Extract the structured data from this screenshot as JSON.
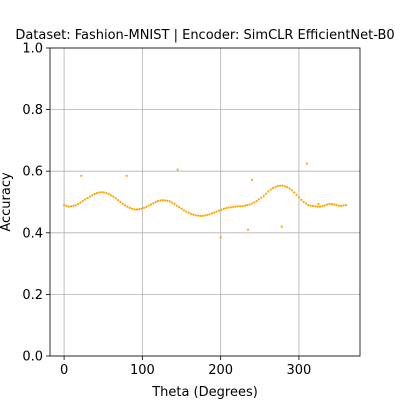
{
  "chart_data": {
    "type": "scatter",
    "title": "Dataset: Fashion-MNIST | Encoder: SimCLR EfficientNet-B0",
    "xlabel": "Theta (Degrees)",
    "ylabel": "Accuracy",
    "xlim": [
      -18,
      378
    ],
    "ylim": [
      0.0,
      1.0
    ],
    "xticks": [
      0,
      100,
      200,
      300
    ],
    "xtick_labels": [
      "0",
      "100",
      "200",
      "300"
    ],
    "yticks": [
      0.0,
      0.2,
      0.4,
      0.6,
      0.8,
      1.0
    ],
    "ytick_labels": [
      "0.0",
      "0.2",
      "0.4",
      "0.6",
      "0.8",
      "1.0"
    ],
    "grid": true,
    "color": "#ffa500",
    "series": [
      {
        "x": [
          0,
          3,
          6,
          9,
          12,
          15,
          18,
          21,
          24,
          27,
          30,
          33,
          36,
          39,
          42,
          45,
          48,
          51,
          54,
          57,
          60,
          63,
          66,
          69,
          72,
          75,
          78,
          81,
          84,
          87,
          90,
          93,
          96,
          99,
          102,
          105,
          108,
          111,
          114,
          117,
          120,
          123,
          126,
          129,
          132,
          135,
          138,
          141,
          144,
          147,
          150,
          153,
          156,
          159,
          162,
          165,
          168,
          171,
          174,
          177,
          180,
          183,
          186,
          189,
          192,
          195,
          198,
          201,
          204,
          207,
          210,
          213,
          216,
          219,
          222,
          225,
          228,
          231,
          234,
          237,
          240,
          243,
          246,
          249,
          252,
          255,
          258,
          261,
          264,
          267,
          270,
          273,
          276,
          279,
          282,
          285,
          288,
          291,
          294,
          297,
          300,
          303,
          306,
          309,
          312,
          315,
          318,
          321,
          324,
          327,
          330,
          333,
          336,
          339,
          342,
          345,
          348,
          351,
          354,
          357,
          360,
          22,
          80,
          145,
          200,
          235,
          240,
          278,
          310,
          325
        ],
        "y": [
          0.49,
          0.487,
          0.485,
          0.486,
          0.488,
          0.49,
          0.494,
          0.498,
          0.503,
          0.508,
          0.513,
          0.518,
          0.522,
          0.526,
          0.529,
          0.531,
          0.532,
          0.531,
          0.529,
          0.526,
          0.522,
          0.517,
          0.512,
          0.506,
          0.5,
          0.494,
          0.489,
          0.485,
          0.481,
          0.478,
          0.476,
          0.476,
          0.477,
          0.478,
          0.481,
          0.484,
          0.488,
          0.492,
          0.496,
          0.5,
          0.503,
          0.505,
          0.506,
          0.505,
          0.504,
          0.502,
          0.498,
          0.494,
          0.488,
          0.483,
          0.478,
          0.473,
          0.469,
          0.465,
          0.462,
          0.459,
          0.457,
          0.456,
          0.455,
          0.455,
          0.456,
          0.458,
          0.46,
          0.463,
          0.466,
          0.469,
          0.472,
          0.475,
          0.478,
          0.48,
          0.482,
          0.483,
          0.484,
          0.485,
          0.486,
          0.486,
          0.487,
          0.488,
          0.49,
          0.492,
          0.495,
          0.499,
          0.503,
          0.508,
          0.514,
          0.52,
          0.527,
          0.534,
          0.54,
          0.545,
          0.549,
          0.552,
          0.553,
          0.553,
          0.551,
          0.548,
          0.544,
          0.538,
          0.531,
          0.523,
          0.515,
          0.507,
          0.5,
          0.495,
          0.49,
          0.488,
          0.487,
          0.486,
          0.485,
          0.485,
          0.487,
          0.489,
          0.492,
          0.494,
          0.493,
          0.492,
          0.49,
          0.488,
          0.487,
          0.489,
          0.49,
          0.585,
          0.585,
          0.605,
          0.385,
          0.41,
          0.572,
          0.42,
          0.625,
          0.494
        ]
      }
    ]
  }
}
